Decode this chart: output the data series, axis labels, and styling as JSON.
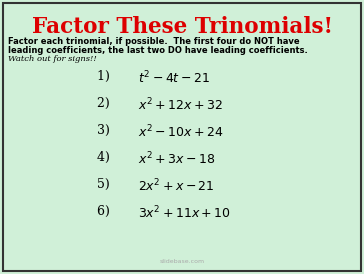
{
  "title": "Factor These Trinomials!",
  "title_color": "#dd0000",
  "bg_color": "#d0f0d8",
  "border_color": "#333333",
  "body_line1": "Factor each trinomial, if possible.  The first four do NOT have",
  "body_line2": "leading coefficients, the last two DO have leading coefficients.",
  "body_italic": "Watch out for signs!!",
  "body_color": "#000000",
  "problems": [
    {
      "num": "1)  ",
      "expr": "$t^2 - 4t - 21$"
    },
    {
      "num": "2)  ",
      "expr": "$x^2 + 12x + 32$"
    },
    {
      "num": "3)  ",
      "expr": "$x^2 -10x + 24$"
    },
    {
      "num": "4)  ",
      "expr": "$x^2 + 3x - 18$"
    },
    {
      "num": "5)  ",
      "expr": "$2x^2 + x - 21$"
    },
    {
      "num": "6)  ",
      "expr": "$3x^2 + 11x + 10$"
    }
  ],
  "watermark": "slidebase.com",
  "figsize": [
    3.64,
    2.74
  ],
  "dpi": 100
}
